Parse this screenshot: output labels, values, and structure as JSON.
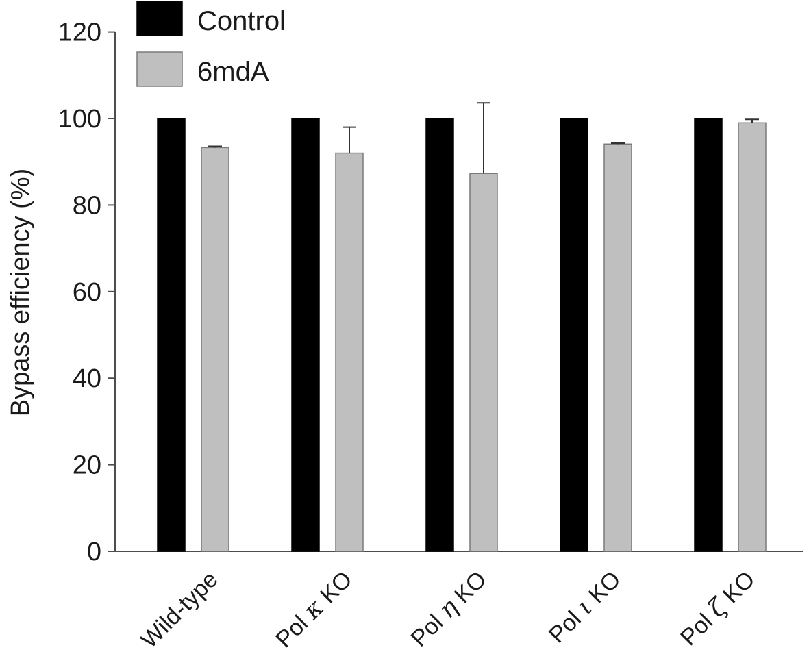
{
  "chart_data": {
    "type": "bar",
    "title": "",
    "xlabel": "",
    "ylabel": "Bypass efficiency (%)",
    "ylim": [
      0,
      120
    ],
    "yticks": [
      0,
      20,
      40,
      60,
      80,
      100,
      120
    ],
    "categories": [
      {
        "label": "Wild-type",
        "prefix": "Wild-type",
        "greek": "",
        "suffix": ""
      },
      {
        "label": "Pol κ KO",
        "prefix": "Pol ",
        "greek": "κ",
        "suffix": " KO"
      },
      {
        "label": "Pol η KO",
        "prefix": "Pol ",
        "greek": "η",
        "suffix": " KO"
      },
      {
        "label": "Pol ι KO",
        "prefix": "Pol ",
        "greek": "ι",
        "suffix": " KO"
      },
      {
        "label": "Pol ζ KO",
        "prefix": "Pol ",
        "greek": "ζ",
        "suffix": " KO"
      }
    ],
    "series": [
      {
        "name": "Control",
        "color": "#000000",
        "values": [
          100,
          100,
          100,
          100,
          100
        ],
        "errors": [
          0,
          0,
          0,
          0,
          0
        ]
      },
      {
        "name": "6mdA",
        "color": "#bfbfbf",
        "values": [
          93.3,
          92.0,
          87.3,
          94.1,
          99.0
        ],
        "errors": [
          0.3,
          6.0,
          16.3,
          0.2,
          0.8
        ]
      }
    ],
    "legend_position": "top-left",
    "grid": false
  }
}
